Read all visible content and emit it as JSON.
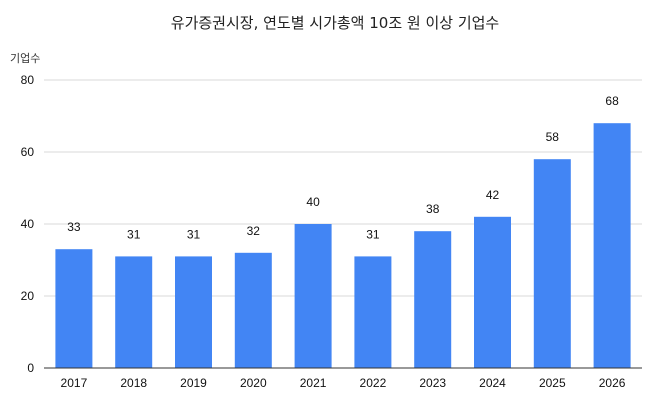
{
  "chart_data": {
    "type": "bar",
    "title": "유가증권시장, 연도별 시가총액 10조 원 이상 기업수",
    "ylabel": "기업수",
    "xlabel": "",
    "categories": [
      "2017",
      "2018",
      "2019",
      "2020",
      "2021",
      "2022",
      "2023",
      "2024",
      "2025",
      "2026"
    ],
    "values": [
      33,
      31,
      31,
      32,
      40,
      31,
      38,
      42,
      58,
      68
    ],
    "ylim": [
      0,
      80
    ],
    "yticks": [
      0,
      20,
      40,
      60,
      80
    ],
    "grid": true,
    "legend": "none",
    "bar_color": "#4285F4",
    "grid_color": "#d9d9d9",
    "axis_color": "#333333"
  }
}
